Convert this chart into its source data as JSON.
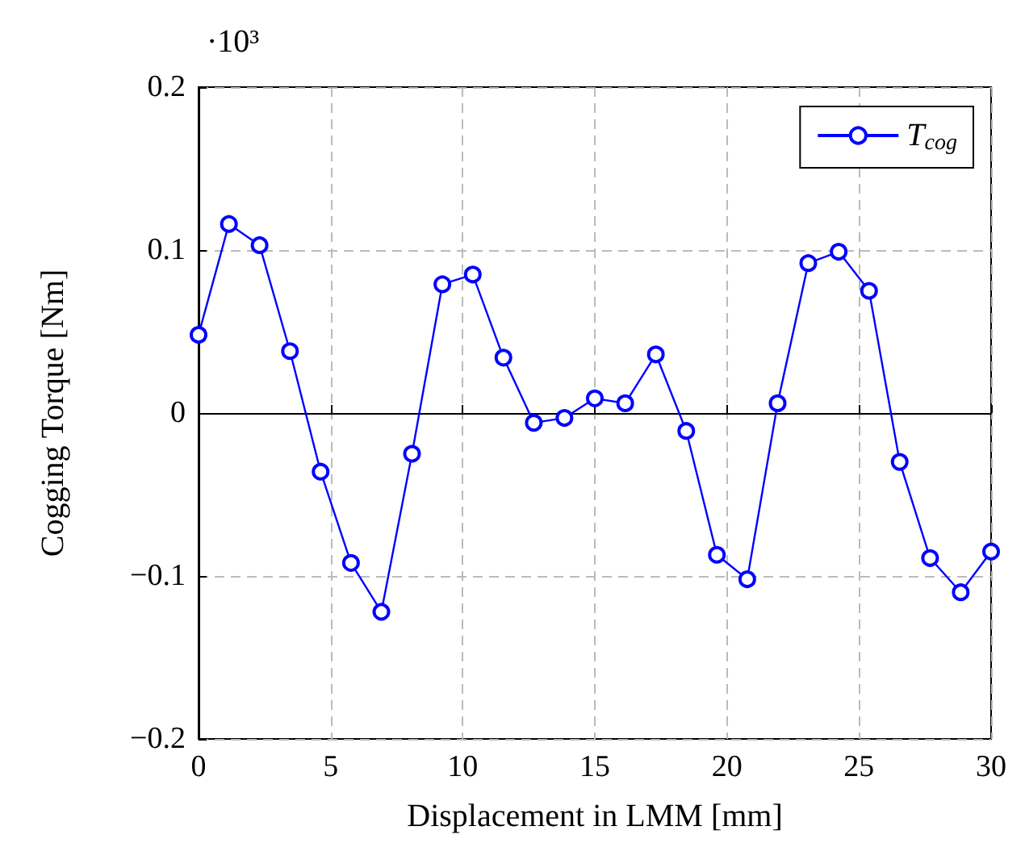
{
  "chart_data": {
    "type": "line",
    "xlabel": "Displacement in LMM [mm]",
    "ylabel": "Cogging Torque [Nm]",
    "annotations": [
      "·10³"
    ],
    "x": [
      0,
      1.15,
      2.31,
      3.46,
      4.62,
      5.77,
      6.92,
      8.08,
      9.23,
      10.38,
      11.54,
      12.69,
      13.85,
      15,
      16.15,
      17.31,
      18.46,
      19.62,
      20.77,
      21.92,
      23.08,
      24.23,
      25.38,
      26.54,
      27.69,
      28.85,
      30
    ],
    "series": [
      {
        "name": "T$_{cog}$",
        "color": "#0000ff",
        "values": [
          0.048,
          0.116,
          0.103,
          0.038,
          -0.036,
          -0.092,
          -0.122,
          -0.025,
          0.079,
          0.085,
          0.034,
          -0.006,
          -0.003,
          0.009,
          0.006,
          0.036,
          -0.011,
          -0.087,
          -0.102,
          0.006,
          0.092,
          0.099,
          0.075,
          -0.03,
          -0.089,
          -0.11,
          -0.085
        ]
      }
    ],
    "xlim": [
      0,
      30
    ],
    "xticks": [
      0,
      5,
      10,
      15,
      20,
      25,
      30
    ],
    "ylim": [
      -0.2,
      0.2
    ],
    "yticks": [
      {
        "value": -0.2,
        "label": "−0.2"
      },
      {
        "value": -0.1,
        "label": "−0.1"
      },
      0,
      0.1,
      0.2
    ],
    "grid": true,
    "legend": "top right",
    "marker": "circle",
    "line_style": "solid"
  }
}
